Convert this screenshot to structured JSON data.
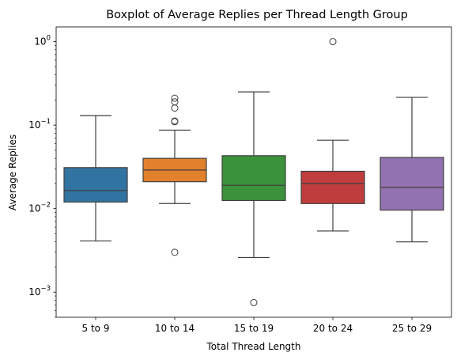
{
  "chart_data": {
    "type": "boxplot",
    "title": "Boxplot of Average Replies per Thread Length Group",
    "xlabel": "Total Thread Length",
    "ylabel": "Average Replies",
    "yscale": "log",
    "ylim": [
      0.0005,
      1.5
    ],
    "y_ticks": [
      {
        "value": 0.001,
        "base": "10",
        "exp": "−3"
      },
      {
        "value": 0.01,
        "base": "10",
        "exp": "−2"
      },
      {
        "value": 0.1,
        "base": "10",
        "exp": "−1"
      },
      {
        "value": 1,
        "base": "10",
        "exp": "0"
      }
    ],
    "grid": false,
    "categories": [
      "5 to 9",
      "10 to 14",
      "15 to 19",
      "20 to 24",
      "25 to 29"
    ],
    "colors": [
      "#3274a1",
      "#e1812c",
      "#3a923a",
      "#c03d3e",
      "#9372b2"
    ],
    "boxes": [
      {
        "label": "5 to 9",
        "whisker_low": 0.0041,
        "q1": 0.012,
        "median": 0.0165,
        "q3": 0.031,
        "whisker_high": 0.13,
        "outliers": []
      },
      {
        "label": "10 to 14",
        "whisker_low": 0.0115,
        "q1": 0.021,
        "median": 0.029,
        "q3": 0.04,
        "whisker_high": 0.087,
        "outliers": [
          0.003,
          0.11,
          0.112,
          0.16,
          0.19,
          0.21
        ]
      },
      {
        "label": "15 to 19",
        "whisker_low": 0.0026,
        "q1": 0.0125,
        "median": 0.019,
        "q3": 0.043,
        "whisker_high": 0.25,
        "outliers": [
          0.00075
        ]
      },
      {
        "label": "20 to 24",
        "whisker_low": 0.0054,
        "q1": 0.0115,
        "median": 0.02,
        "q3": 0.028,
        "whisker_high": 0.066,
        "outliers": [
          1.0
        ]
      },
      {
        "label": "25 to 29",
        "whisker_low": 0.004,
        "q1": 0.0096,
        "median": 0.018,
        "q3": 0.041,
        "whisker_high": 0.215,
        "outliers": []
      }
    ]
  }
}
